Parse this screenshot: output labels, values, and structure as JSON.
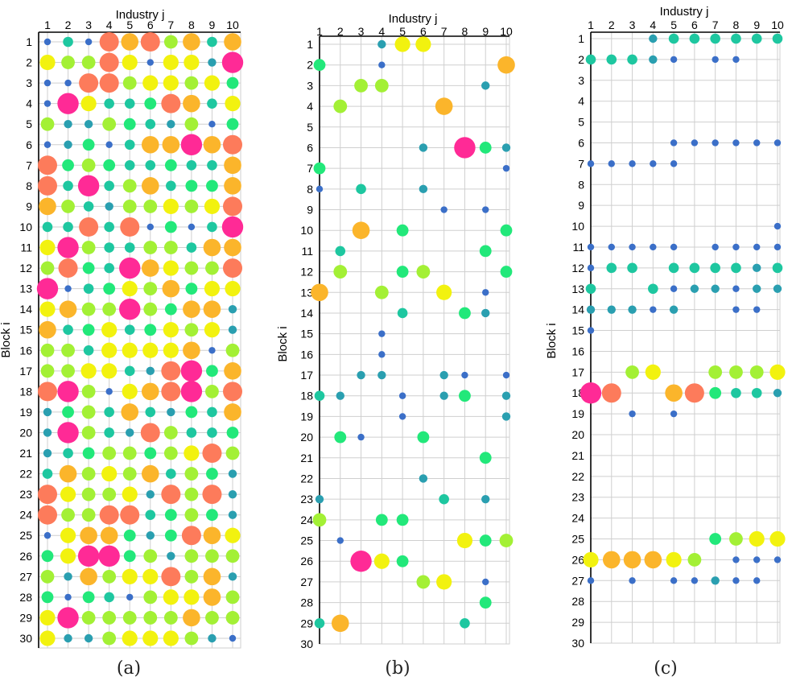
{
  "colors": {
    "c1": "#3b6fc8",
    "c2": "#2a9fb0",
    "c3": "#1ec7a0",
    "c4": "#22e87a",
    "c5": "#a3f035",
    "c6": "#f2f20f",
    "c7": "#fbb52b",
    "c8": "#fd7b5b",
    "c9": "#ff2a96",
    "grid": "#cfcfcf",
    "axis": "#000000"
  },
  "captions": [
    "(a)",
    "(b)",
    "(c)"
  ],
  "chart_data": [
    {
      "type": "scatter",
      "encoding": "bubble grid: value 1-9 sets marker size and color",
      "xlabel": "Industry j",
      "ylabel": "Block i",
      "xticks": [
        "1",
        "2",
        "3",
        "4",
        "5",
        "6",
        "7",
        "8",
        "9",
        "10"
      ],
      "yticks": [
        "1",
        "2",
        "3",
        "4",
        "5",
        "6",
        "7",
        "8",
        "9",
        "10",
        "11",
        "12",
        "13",
        "14",
        "15",
        "16",
        "17",
        "18",
        "19",
        "20",
        "21",
        "22",
        "23",
        "24",
        "25",
        "26",
        "27",
        "28",
        "29",
        "30"
      ],
      "grid": true,
      "rows": [
        [
          1,
          3,
          1,
          8,
          7,
          8,
          5,
          7,
          3,
          7
        ],
        [
          6,
          5,
          5,
          8,
          6,
          1,
          6,
          6,
          2,
          9
        ],
        [
          1,
          1,
          8,
          8,
          5,
          6,
          6,
          5,
          6,
          4
        ],
        [
          1,
          9,
          6,
          3,
          3,
          4,
          8,
          7,
          3,
          6
        ],
        [
          5,
          2,
          2,
          5,
          4,
          3,
          2,
          5,
          1,
          4
        ],
        [
          1,
          2,
          4,
          1,
          3,
          7,
          7,
          9,
          7,
          8
        ],
        [
          8,
          4,
          5,
          4,
          3,
          3,
          4,
          3,
          3,
          7
        ],
        [
          8,
          3,
          9,
          3,
          5,
          7,
          3,
          4,
          4,
          7
        ],
        [
          7,
          5,
          3,
          2,
          5,
          5,
          6,
          5,
          6,
          8
        ],
        [
          3,
          3,
          8,
          3,
          8,
          1,
          4,
          1,
          3,
          9
        ],
        [
          6,
          9,
          5,
          3,
          3,
          5,
          5,
          3,
          7,
          7
        ],
        [
          5,
          8,
          4,
          3,
          9,
          7,
          6,
          5,
          5,
          8
        ],
        [
          9,
          1,
          3,
          4,
          6,
          5,
          7,
          4,
          6,
          6
        ],
        [
          6,
          7,
          5,
          5,
          9,
          5,
          4,
          7,
          7,
          2
        ],
        [
          7,
          3,
          4,
          6,
          3,
          4,
          6,
          5,
          6,
          2
        ],
        [
          5,
          5,
          3,
          6,
          6,
          6,
          6,
          7,
          1,
          5
        ],
        [
          5,
          5,
          6,
          6,
          3,
          2,
          8,
          9,
          4,
          7
        ],
        [
          8,
          9,
          5,
          1,
          6,
          7,
          8,
          9,
          5,
          8
        ],
        [
          2,
          4,
          5,
          3,
          7,
          3,
          2,
          4,
          3,
          7
        ],
        [
          2,
          9,
          5,
          3,
          2,
          8,
          5,
          3,
          3,
          4
        ],
        [
          2,
          3,
          4,
          5,
          5,
          4,
          5,
          6,
          8,
          5
        ],
        [
          3,
          7,
          5,
          6,
          5,
          7,
          3,
          5,
          4,
          2
        ],
        [
          8,
          6,
          5,
          5,
          6,
          2,
          8,
          5,
          8,
          2
        ],
        [
          8,
          5,
          5,
          8,
          8,
          3,
          4,
          5,
          4,
          2
        ],
        [
          1,
          6,
          7,
          7,
          4,
          2,
          4,
          8,
          7,
          6
        ],
        [
          4,
          6,
          9,
          9,
          4,
          5,
          2,
          5,
          5,
          5
        ],
        [
          5,
          2,
          7,
          5,
          6,
          6,
          8,
          5,
          7,
          2
        ],
        [
          4,
          1,
          4,
          3,
          1,
          5,
          6,
          6,
          7,
          5
        ],
        [
          6,
          9,
          5,
          5,
          5,
          5,
          5,
          7,
          5,
          5
        ],
        [
          6,
          2,
          2,
          5,
          6,
          6,
          6,
          5,
          2,
          1
        ]
      ]
    },
    {
      "type": "scatter",
      "encoding": "bubble grid: value 1-9 sets marker size and color; 0 = empty",
      "xlabel": "Industry j",
      "ylabel": "Block i",
      "xticks": [
        "1",
        "2",
        "3",
        "4",
        "5",
        "6",
        "7",
        "8",
        "9",
        "10"
      ],
      "yticks": [
        "1",
        "2",
        "3",
        "4",
        "5",
        "6",
        "7",
        "8",
        "9",
        "10",
        "11",
        "12",
        "13",
        "14",
        "15",
        "16",
        "17",
        "18",
        "19",
        "20",
        "21",
        "22",
        "23",
        "24",
        "25",
        "26",
        "27",
        "28",
        "29",
        "30"
      ],
      "grid": true,
      "rows": [
        [
          0,
          0,
          0,
          2,
          6,
          6,
          0,
          0,
          0,
          0
        ],
        [
          4,
          0,
          0,
          1,
          0,
          0,
          0,
          0,
          0,
          7
        ],
        [
          0,
          0,
          5,
          5,
          0,
          0,
          0,
          0,
          2,
          0
        ],
        [
          0,
          5,
          0,
          0,
          0,
          0,
          7,
          0,
          0,
          0
        ],
        [
          0,
          0,
          0,
          0,
          0,
          0,
          0,
          0,
          0,
          0
        ],
        [
          0,
          0,
          0,
          0,
          0,
          2,
          0,
          9,
          4,
          2
        ],
        [
          4,
          0,
          0,
          0,
          0,
          0,
          0,
          0,
          0,
          1
        ],
        [
          1,
          0,
          3,
          0,
          0,
          2,
          0,
          0,
          0,
          0
        ],
        [
          0,
          0,
          0,
          0,
          0,
          0,
          1,
          0,
          1,
          0
        ],
        [
          0,
          0,
          7,
          0,
          4,
          0,
          0,
          0,
          0,
          4
        ],
        [
          0,
          3,
          0,
          0,
          0,
          0,
          0,
          0,
          4,
          0
        ],
        [
          0,
          5,
          0,
          0,
          4,
          5,
          0,
          0,
          0,
          4
        ],
        [
          7,
          0,
          0,
          5,
          0,
          0,
          6,
          0,
          1,
          0
        ],
        [
          0,
          0,
          0,
          0,
          3,
          0,
          0,
          4,
          2,
          0
        ],
        [
          0,
          0,
          0,
          1,
          0,
          0,
          0,
          0,
          0,
          0
        ],
        [
          0,
          0,
          0,
          1,
          0,
          0,
          0,
          0,
          0,
          0
        ],
        [
          0,
          0,
          2,
          2,
          0,
          0,
          2,
          1,
          0,
          1
        ],
        [
          3,
          2,
          0,
          0,
          1,
          0,
          2,
          4,
          0,
          2
        ],
        [
          0,
          0,
          0,
          0,
          1,
          0,
          0,
          0,
          0,
          2
        ],
        [
          0,
          4,
          1,
          0,
          0,
          4,
          0,
          0,
          0,
          0
        ],
        [
          0,
          0,
          0,
          0,
          0,
          0,
          0,
          0,
          4,
          0
        ],
        [
          0,
          0,
          0,
          0,
          0,
          2,
          0,
          0,
          0,
          0
        ],
        [
          2,
          0,
          0,
          0,
          0,
          0,
          3,
          0,
          2,
          0
        ],
        [
          5,
          0,
          0,
          4,
          4,
          0,
          0,
          0,
          0,
          0
        ],
        [
          0,
          1,
          0,
          0,
          0,
          0,
          0,
          6,
          4,
          5
        ],
        [
          0,
          0,
          9,
          6,
          4,
          0,
          0,
          0,
          0,
          0
        ],
        [
          0,
          0,
          0,
          0,
          0,
          5,
          6,
          0,
          1,
          0
        ],
        [
          0,
          0,
          0,
          0,
          0,
          0,
          0,
          0,
          4,
          0
        ],
        [
          3,
          7,
          0,
          0,
          0,
          0,
          0,
          3,
          0,
          0
        ],
        [
          0,
          0,
          0,
          0,
          0,
          0,
          0,
          0,
          0,
          0
        ]
      ]
    },
    {
      "type": "scatter",
      "encoding": "bubble grid: value 1-9 sets marker size and color; 0 = empty",
      "xlabel": "Industry j",
      "ylabel": "Block i",
      "xticks": [
        "1",
        "2",
        "3",
        "4",
        "5",
        "6",
        "7",
        "8",
        "9",
        "10"
      ],
      "yticks": [
        "1",
        "2",
        "3",
        "4",
        "5",
        "6",
        "7",
        "8",
        "9",
        "10",
        "11",
        "12",
        "13",
        "14",
        "15",
        "16",
        "17",
        "18",
        "19",
        "20",
        "21",
        "22",
        "23",
        "24",
        "25",
        "26",
        "27",
        "28",
        "29",
        "30"
      ],
      "grid": true,
      "rows": [
        [
          0,
          0,
          0,
          2,
          3,
          3,
          3,
          3,
          3,
          3
        ],
        [
          3,
          3,
          3,
          2,
          1,
          0,
          1,
          1,
          0,
          0
        ],
        [
          0,
          0,
          0,
          0,
          0,
          0,
          0,
          0,
          0,
          0
        ],
        [
          0,
          0,
          0,
          0,
          0,
          0,
          0,
          0,
          0,
          0
        ],
        [
          0,
          0,
          0,
          0,
          0,
          0,
          0,
          0,
          0,
          0
        ],
        [
          0,
          0,
          0,
          0,
          1,
          1,
          1,
          1,
          1,
          1
        ],
        [
          1,
          1,
          1,
          1,
          1,
          0,
          0,
          0,
          0,
          0
        ],
        [
          0,
          0,
          0,
          0,
          0,
          0,
          0,
          0,
          0,
          0
        ],
        [
          0,
          0,
          0,
          0,
          0,
          0,
          0,
          0,
          0,
          0
        ],
        [
          0,
          0,
          0,
          0,
          0,
          0,
          0,
          0,
          0,
          1
        ],
        [
          1,
          1,
          1,
          1,
          1,
          0,
          1,
          1,
          1,
          1
        ],
        [
          1,
          3,
          3,
          0,
          3,
          3,
          3,
          3,
          2,
          3
        ],
        [
          3,
          0,
          0,
          3,
          1,
          2,
          2,
          1,
          2,
          2
        ],
        [
          2,
          2,
          2,
          1,
          2,
          0,
          0,
          1,
          1,
          0
        ],
        [
          1,
          0,
          0,
          0,
          0,
          0,
          0,
          0,
          0,
          0
        ],
        [
          0,
          0,
          0,
          0,
          0,
          0,
          0,
          0,
          0,
          0
        ],
        [
          0,
          0,
          5,
          6,
          0,
          0,
          5,
          5,
          5,
          6
        ],
        [
          9,
          8,
          0,
          0,
          7,
          8,
          4,
          3,
          3,
          2
        ],
        [
          0,
          0,
          1,
          0,
          1,
          0,
          0,
          0,
          0,
          0
        ],
        [
          0,
          0,
          0,
          0,
          0,
          0,
          0,
          0,
          0,
          0
        ],
        [
          0,
          0,
          0,
          0,
          0,
          0,
          0,
          0,
          0,
          0
        ],
        [
          0,
          0,
          0,
          0,
          0,
          0,
          0,
          0,
          0,
          0
        ],
        [
          0,
          0,
          0,
          0,
          0,
          0,
          0,
          0,
          0,
          0
        ],
        [
          0,
          0,
          0,
          0,
          0,
          0,
          0,
          0,
          0,
          0
        ],
        [
          0,
          0,
          0,
          0,
          0,
          0,
          4,
          5,
          6,
          6
        ],
        [
          6,
          7,
          7,
          7,
          6,
          5,
          0,
          1,
          1,
          1
        ],
        [
          1,
          0,
          1,
          0,
          1,
          1,
          2,
          1,
          1,
          0
        ],
        [
          0,
          0,
          0,
          0,
          0,
          0,
          0,
          0,
          0,
          0
        ],
        [
          0,
          0,
          0,
          0,
          0,
          0,
          0,
          0,
          0,
          0
        ],
        [
          0,
          0,
          0,
          0,
          0,
          0,
          0,
          0,
          0,
          0
        ]
      ]
    }
  ]
}
